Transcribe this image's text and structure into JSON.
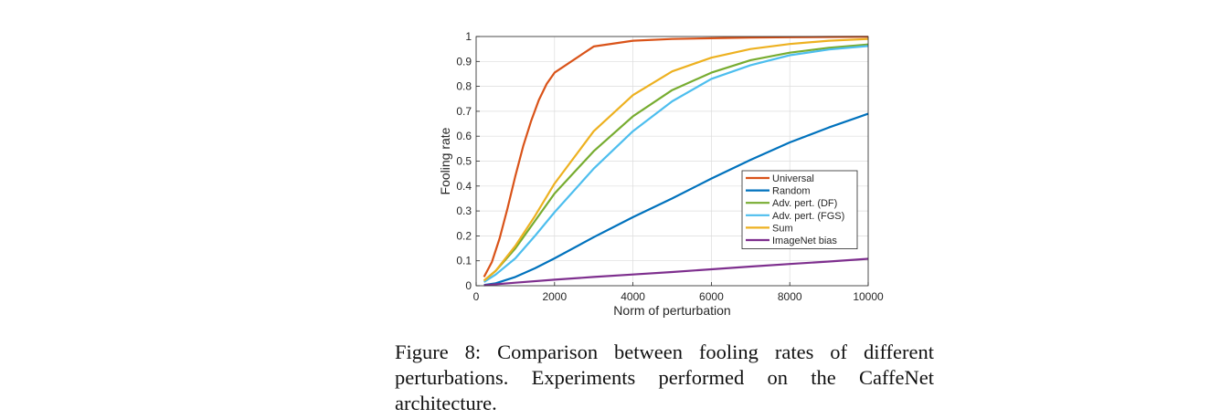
{
  "caption": "Figure 8:  Comparison between fooling rates of different perturbations. Experiments performed on the CaffeNet architecture.",
  "chart_data": {
    "type": "line",
    "xlabel": "Norm of perturbation",
    "ylabel": "Fooling rate",
    "xlim": [
      0,
      10000
    ],
    "ylim": [
      0,
      1
    ],
    "xticks": [
      0,
      2000,
      4000,
      6000,
      8000,
      10000
    ],
    "yticks": [
      0,
      0.1,
      0.2,
      0.3,
      0.4,
      0.5,
      0.6,
      0.7,
      0.8,
      0.9,
      1
    ],
    "grid": true,
    "legend_position": "lower-right",
    "series": [
      {
        "name": "Universal",
        "color": "#D95319",
        "x": [
          200,
          400,
          600,
          800,
          1000,
          1200,
          1400,
          1600,
          1800,
          2000,
          3000,
          4000,
          5000,
          6000,
          7000,
          8000,
          9000,
          10000
        ],
        "y": [
          0.035,
          0.095,
          0.19,
          0.31,
          0.44,
          0.56,
          0.66,
          0.745,
          0.81,
          0.855,
          0.96,
          0.983,
          0.99,
          0.993,
          0.996,
          0.997,
          0.998,
          0.999
        ]
      },
      {
        "name": "Random",
        "color": "#0072BD",
        "x": [
          200,
          500,
          1000,
          1500,
          2000,
          3000,
          4000,
          5000,
          6000,
          7000,
          8000,
          9000,
          10000
        ],
        "y": [
          0.003,
          0.01,
          0.035,
          0.07,
          0.11,
          0.195,
          0.275,
          0.35,
          0.43,
          0.505,
          0.575,
          0.635,
          0.69
        ]
      },
      {
        "name": "Adv. pert. (DF)",
        "color": "#77AC30",
        "x": [
          200,
          500,
          1000,
          1500,
          2000,
          3000,
          4000,
          5000,
          6000,
          7000,
          8000,
          9000,
          10000
        ],
        "y": [
          0.02,
          0.06,
          0.15,
          0.26,
          0.37,
          0.54,
          0.68,
          0.785,
          0.855,
          0.905,
          0.935,
          0.955,
          0.968
        ]
      },
      {
        "name": "Adv. pert. (FGS)",
        "color": "#4DBEEE",
        "x": [
          200,
          500,
          1000,
          1500,
          2000,
          3000,
          4000,
          5000,
          6000,
          7000,
          8000,
          9000,
          10000
        ],
        "y": [
          0.015,
          0.045,
          0.11,
          0.2,
          0.295,
          0.47,
          0.62,
          0.74,
          0.83,
          0.885,
          0.925,
          0.948,
          0.962
        ]
      },
      {
        "name": "Sum",
        "color": "#EDB120",
        "x": [
          200,
          500,
          1000,
          1500,
          2000,
          3000,
          4000,
          5000,
          6000,
          7000,
          8000,
          9000,
          10000
        ],
        "y": [
          0.02,
          0.06,
          0.16,
          0.28,
          0.41,
          0.62,
          0.765,
          0.86,
          0.915,
          0.95,
          0.97,
          0.983,
          0.99
        ]
      },
      {
        "name": "ImageNet bias",
        "color": "#7E2F8E",
        "x": [
          200,
          1000,
          2000,
          3000,
          4000,
          5000,
          6000,
          7000,
          8000,
          9000,
          10000
        ],
        "y": [
          0.002,
          0.012,
          0.024,
          0.035,
          0.045,
          0.055,
          0.066,
          0.077,
          0.087,
          0.097,
          0.108
        ]
      }
    ]
  }
}
